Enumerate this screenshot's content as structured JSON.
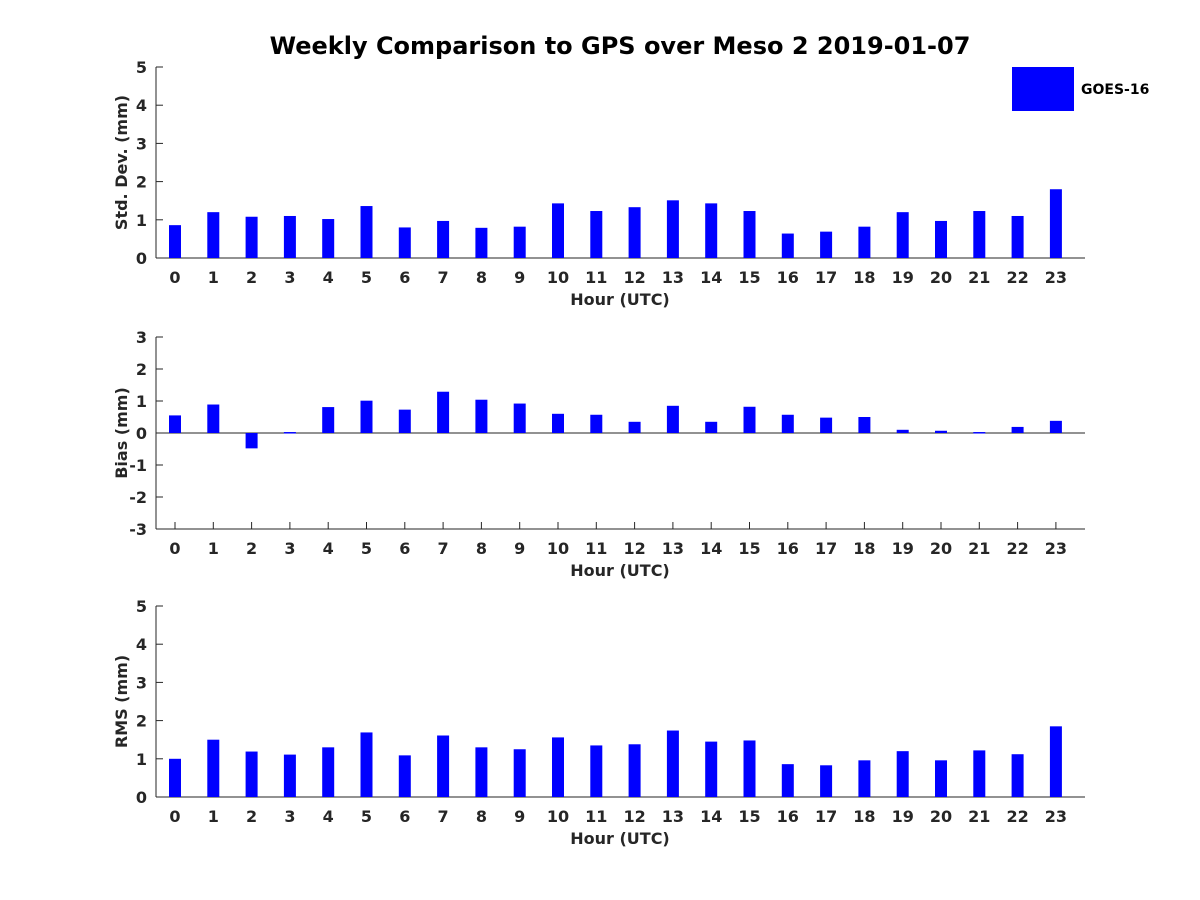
{
  "chart_data": [
    {
      "type": "bar",
      "title": "Weekly Comparison to GPS over Meso 2 2019-01-07",
      "xlabel": "Hour (UTC)",
      "ylabel": "Std. Dev. (mm)",
      "ylim": [
        0,
        5
      ],
      "yticks": [
        "0",
        "1",
        "2",
        "3",
        "4",
        "5"
      ],
      "categories": [
        "0",
        "1",
        "2",
        "3",
        "4",
        "5",
        "6",
        "7",
        "8",
        "9",
        "10",
        "11",
        "12",
        "13",
        "14",
        "15",
        "16",
        "17",
        "18",
        "19",
        "20",
        "21",
        "22",
        "23"
      ],
      "series": [
        {
          "name": "GOES-16",
          "color": "#0000ff",
          "values": [
            0.86,
            1.2,
            1.08,
            1.1,
            1.02,
            1.36,
            0.8,
            0.97,
            0.79,
            0.82,
            1.43,
            1.23,
            1.33,
            1.51,
            1.43,
            1.23,
            0.64,
            0.69,
            0.82,
            1.2,
            0.97,
            1.23,
            1.1,
            1.8
          ]
        }
      ],
      "legend": {
        "position": "top-right",
        "entries": [
          "GOES-16"
        ]
      }
    },
    {
      "type": "bar",
      "title": "",
      "xlabel": "Hour (UTC)",
      "ylabel": "Bias (mm)",
      "ylim": [
        -3,
        3
      ],
      "yticks": [
        "-3",
        "-2",
        "-1",
        "0",
        "1",
        "2",
        "3"
      ],
      "zero_line": true,
      "categories": [
        "0",
        "1",
        "2",
        "3",
        "4",
        "5",
        "6",
        "7",
        "8",
        "9",
        "10",
        "11",
        "12",
        "13",
        "14",
        "15",
        "16",
        "17",
        "18",
        "19",
        "20",
        "21",
        "22",
        "23"
      ],
      "series": [
        {
          "name": "GOES-16",
          "color": "#0000ff",
          "values": [
            0.55,
            0.89,
            -0.48,
            0.03,
            0.81,
            1.01,
            0.73,
            1.29,
            1.04,
            0.92,
            0.6,
            0.57,
            0.35,
            0.85,
            0.35,
            0.82,
            0.57,
            0.48,
            0.5,
            0.1,
            0.07,
            0.03,
            0.19,
            0.38
          ]
        }
      ]
    },
    {
      "type": "bar",
      "title": "",
      "xlabel": "Hour (UTC)",
      "ylabel": "RMS (mm)",
      "ylim": [
        0,
        5
      ],
      "yticks": [
        "0",
        "1",
        "2",
        "3",
        "4",
        "5"
      ],
      "categories": [
        "0",
        "1",
        "2",
        "3",
        "4",
        "5",
        "6",
        "7",
        "8",
        "9",
        "10",
        "11",
        "12",
        "13",
        "14",
        "15",
        "16",
        "17",
        "18",
        "19",
        "20",
        "21",
        "22",
        "23"
      ],
      "series": [
        {
          "name": "GOES-16",
          "color": "#0000ff",
          "values": [
            1.0,
            1.5,
            1.19,
            1.11,
            1.3,
            1.69,
            1.09,
            1.61,
            1.3,
            1.25,
            1.56,
            1.35,
            1.38,
            1.74,
            1.45,
            1.48,
            0.86,
            0.83,
            0.96,
            1.2,
            0.96,
            1.22,
            1.12,
            1.85
          ]
        }
      ]
    }
  ]
}
